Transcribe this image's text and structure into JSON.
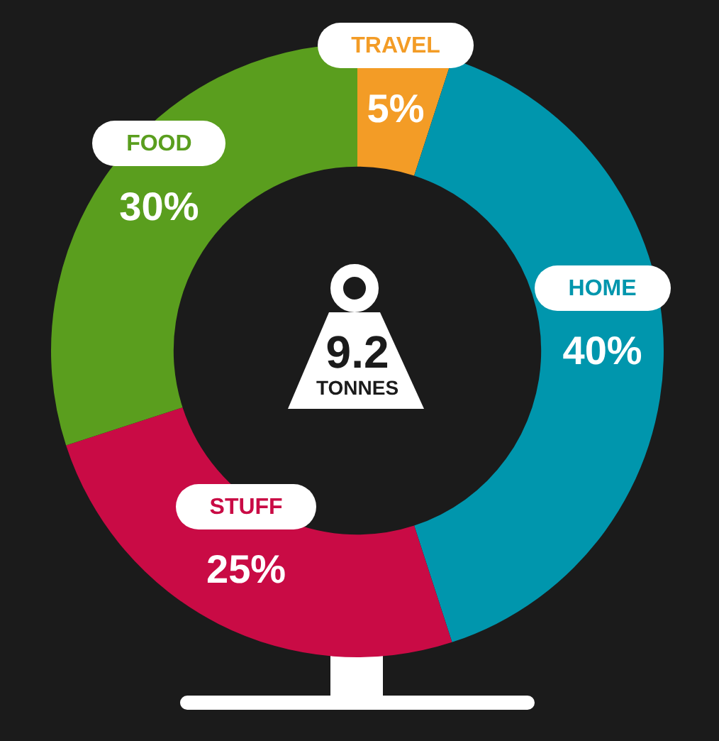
{
  "chart_data": {
    "type": "donut",
    "categories": [
      "TRAVEL",
      "HOME",
      "STUFF",
      "FOOD"
    ],
    "values": [
      5,
      40,
      25,
      30
    ],
    "colors": [
      "#f39c26",
      "#0096ad",
      "#c90b45",
      "#5a9e1e"
    ],
    "value_labels": [
      "5%",
      "40%",
      "25%",
      "30%"
    ],
    "annotations": [
      "9.2",
      "TONNES"
    ],
    "legend": false
  }
}
